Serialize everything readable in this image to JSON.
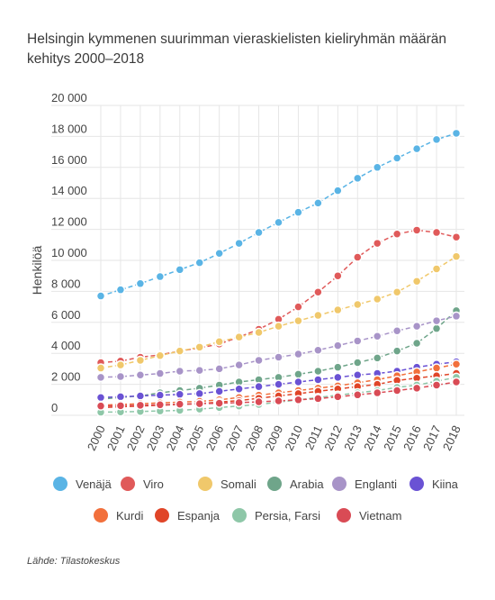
{
  "title": "Helsingin kymmenen suurimman vieraskielisten kieliryhmän määrän kehitys 2000–2018",
  "source": "Lähde: Tilastokeskus",
  "chart_data": {
    "type": "line",
    "title": "Helsingin kymmenen suurimman vieraskielisten kieliryhmän määrän kehitys 2000–2018",
    "xlabel": "",
    "ylabel": "Henkilöä",
    "ylim": [
      0,
      20000
    ],
    "yticks": [
      0,
      2000,
      4000,
      6000,
      8000,
      10000,
      12000,
      14000,
      16000,
      18000,
      20000
    ],
    "ytick_labels": [
      "0",
      "2 000",
      "4 000",
      "6 000",
      "8 000",
      "10 000",
      "12 000",
      "14 000",
      "16 000",
      "18 000",
      "20 000"
    ],
    "grid": true,
    "legend_position": "bottom",
    "x": [
      "2000",
      "2001",
      "2002",
      "2003",
      "2004",
      "2005",
      "2006",
      "2007",
      "2008",
      "2009",
      "2010",
      "2011",
      "2012",
      "2013",
      "2014",
      "2015",
      "2016",
      "2017",
      "2018"
    ],
    "series": [
      {
        "name": "Venäjä",
        "color": "#5ab4e5",
        "values": [
          7700,
          8100,
          8500,
          8950,
          9400,
          9850,
          10450,
          11100,
          11800,
          12450,
          13100,
          13700,
          14500,
          15300,
          16000,
          16600,
          17200,
          17800,
          18200
        ]
      },
      {
        "name": "Viro",
        "color": "#e05a5a",
        "values": [
          3400,
          3500,
          3750,
          3900,
          4150,
          4350,
          4600,
          5050,
          5550,
          6200,
          7000,
          7950,
          9000,
          10200,
          11100,
          11700,
          11950,
          11800,
          11500
        ]
      },
      {
        "name": "Somali",
        "color": "#f0c86b",
        "values": [
          3050,
          3250,
          3550,
          3850,
          4150,
          4400,
          4750,
          5050,
          5350,
          5750,
          6100,
          6450,
          6800,
          7150,
          7500,
          7950,
          8650,
          9450,
          10250
        ]
      },
      {
        "name": "Arabia",
        "color": "#6fa58a",
        "values": [
          1050,
          1150,
          1250,
          1450,
          1600,
          1750,
          1950,
          2150,
          2300,
          2450,
          2650,
          2850,
          3100,
          3400,
          3700,
          4150,
          4650,
          5600,
          6750
        ]
      },
      {
        "name": "Englanti",
        "color": "#a894c8",
        "values": [
          2450,
          2500,
          2600,
          2700,
          2850,
          2900,
          3000,
          3250,
          3550,
          3750,
          3950,
          4200,
          4500,
          4800,
          5100,
          5450,
          5750,
          6100,
          6400
        ]
      },
      {
        "name": "Kiina",
        "color": "#6a52d4",
        "values": [
          1150,
          1200,
          1250,
          1300,
          1350,
          1400,
          1550,
          1700,
          1850,
          2000,
          2150,
          2300,
          2450,
          2600,
          2700,
          2850,
          3100,
          3300,
          3450
        ]
      },
      {
        "name": "Kurdi",
        "color": "#f2703c",
        "values": [
          650,
          700,
          750,
          800,
          850,
          900,
          1000,
          1150,
          1300,
          1450,
          1600,
          1750,
          1900,
          2100,
          2300,
          2550,
          2800,
          3050,
          3300
        ]
      },
      {
        "name": "Espanja",
        "color": "#e04528",
        "values": [
          500,
          550,
          600,
          650,
          700,
          750,
          850,
          950,
          1100,
          1250,
          1400,
          1550,
          1700,
          1850,
          2000,
          2250,
          2400,
          2550,
          2700
        ]
      },
      {
        "name": "Persia, Farsi",
        "color": "#8ec7a8",
        "values": [
          200,
          220,
          250,
          280,
          320,
          400,
          500,
          600,
          700,
          850,
          1000,
          1150,
          1300,
          1450,
          1600,
          1800,
          1950,
          2200,
          2450
        ]
      },
      {
        "name": "Vietnam",
        "color": "#d94b55",
        "values": [
          600,
          620,
          650,
          680,
          720,
          750,
          780,
          820,
          870,
          930,
          1000,
          1080,
          1200,
          1320,
          1450,
          1600,
          1750,
          1950,
          2150
        ]
      }
    ]
  }
}
